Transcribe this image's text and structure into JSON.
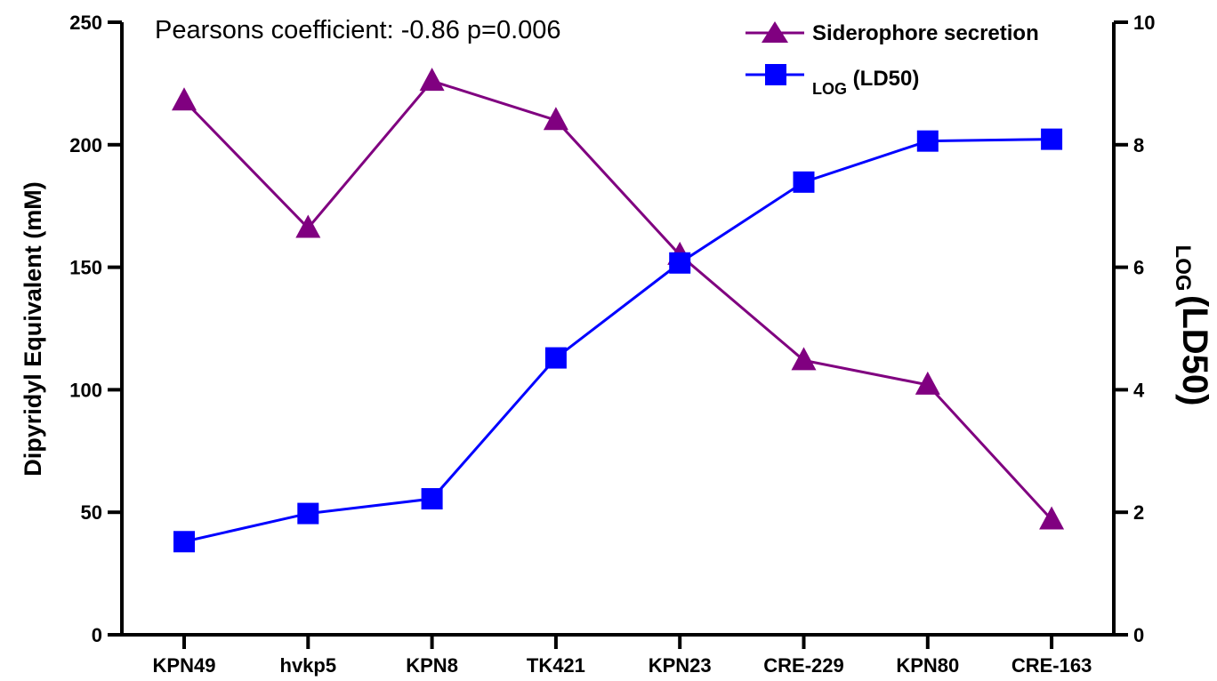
{
  "chart_data": {
    "type": "line",
    "categories": [
      "KPN49",
      "hvkp5",
      "KPN8",
      "TK421",
      "KPN23",
      "CRE-229",
      "KPN80",
      "CRE-163"
    ],
    "series": [
      {
        "name": "Siderophore secretion",
        "axis": "left",
        "marker": "triangle",
        "color": "#800080",
        "values": [
          218,
          166,
          226,
          210,
          155,
          112,
          102,
          47
        ]
      },
      {
        "name_sub": "LOG",
        "name_main": "(LD50)",
        "axis": "right",
        "marker": "square",
        "color": "#0000ff",
        "values": [
          1.52,
          1.98,
          2.22,
          4.52,
          6.07,
          7.39,
          8.06,
          8.09
        ]
      }
    ],
    "ylabel": "Dipyridyl Equivalent (mM)",
    "y2label_sub": "LOG",
    "y2label_main": "(LD50)",
    "ylim": [
      0,
      250
    ],
    "y2lim": [
      0,
      10
    ],
    "yticks": [
      "0",
      "50",
      "100",
      "150",
      "200",
      "250"
    ],
    "y2ticks": [
      "0",
      "2",
      "4",
      "6",
      "8",
      "10"
    ],
    "annotation": "Pearsons coefficient: -0.86 p=0.006",
    "legend_position": "top-right",
    "grid": false
  }
}
